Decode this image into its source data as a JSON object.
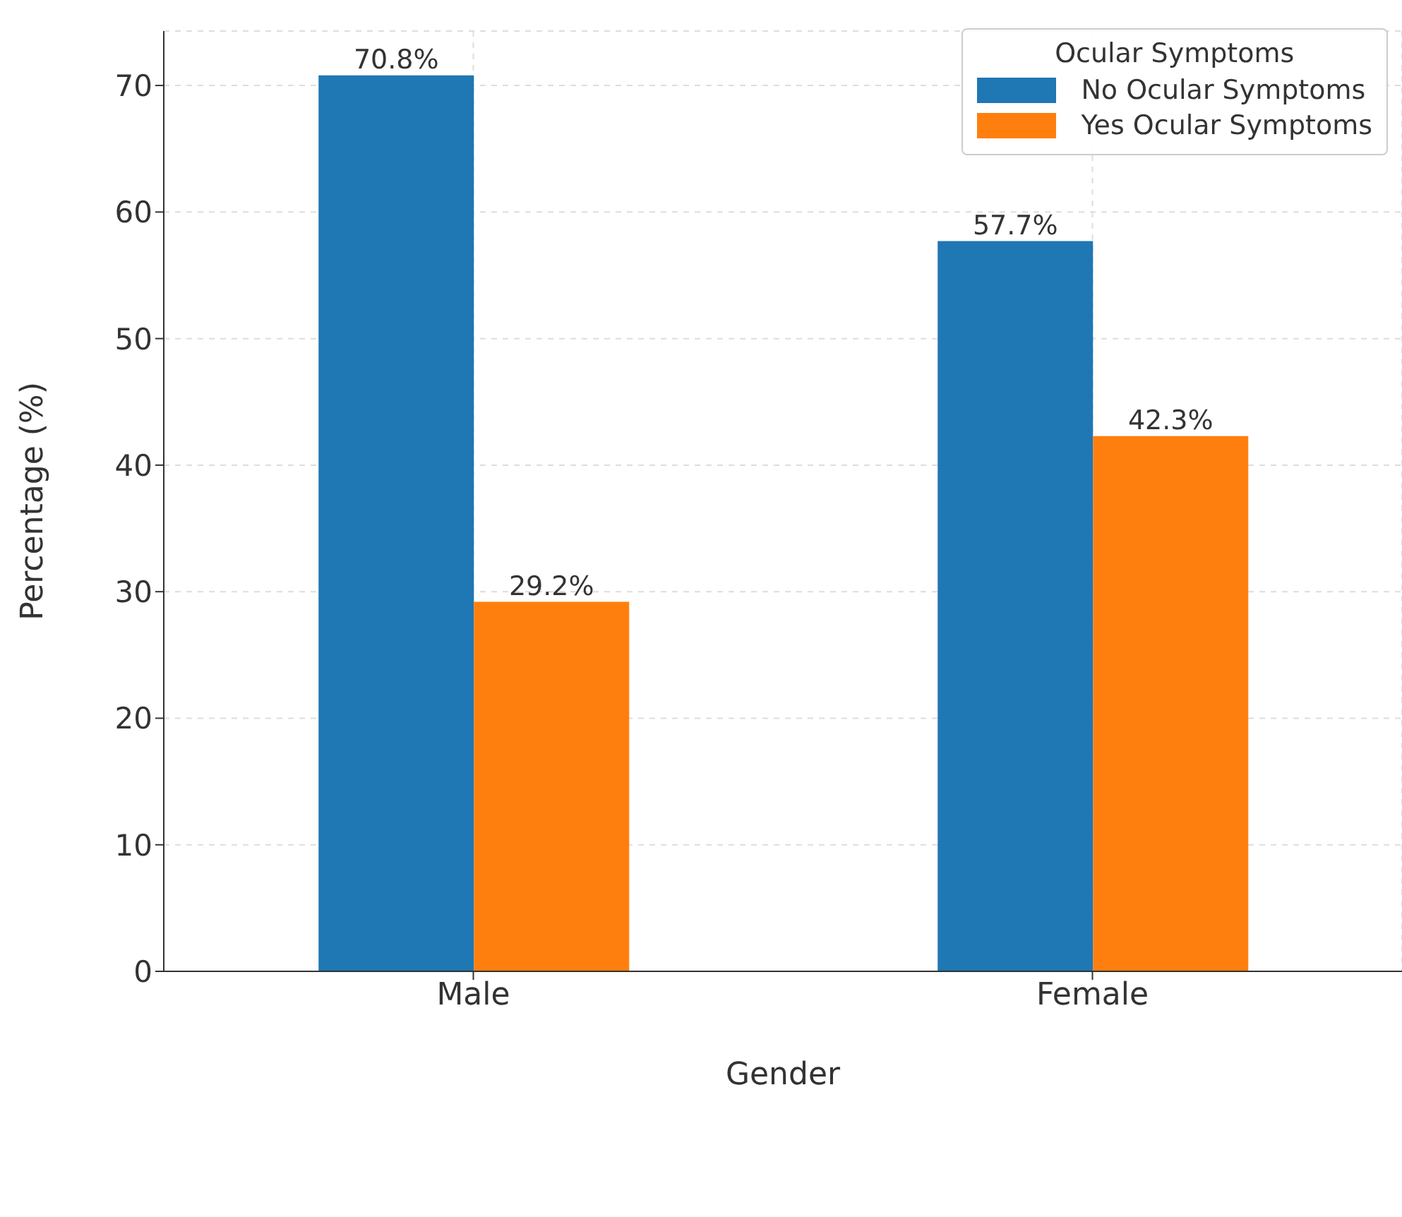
{
  "chart_data": {
    "type": "bar",
    "xlabel": "Gender",
    "ylabel": "Percentage (%)",
    "legend_title": "Ocular Symptoms",
    "categories": [
      "Male",
      "Female"
    ],
    "series": [
      {
        "name": "No Ocular Symptoms",
        "color": "#1f77b4",
        "values": [
          70.8,
          57.7
        ],
        "value_labels": [
          "70.8%",
          "57.7%"
        ]
      },
      {
        "name": "Yes Ocular Symptoms",
        "color": "#ff7f0e",
        "values": [
          29.2,
          42.3
        ],
        "value_labels": [
          "29.2%",
          "42.3%"
        ]
      }
    ],
    "ylim": [
      0,
      74.3
    ],
    "yticks": [
      0,
      10,
      20,
      30,
      40,
      50,
      60,
      70
    ],
    "grid": true,
    "legend": "top right"
  }
}
